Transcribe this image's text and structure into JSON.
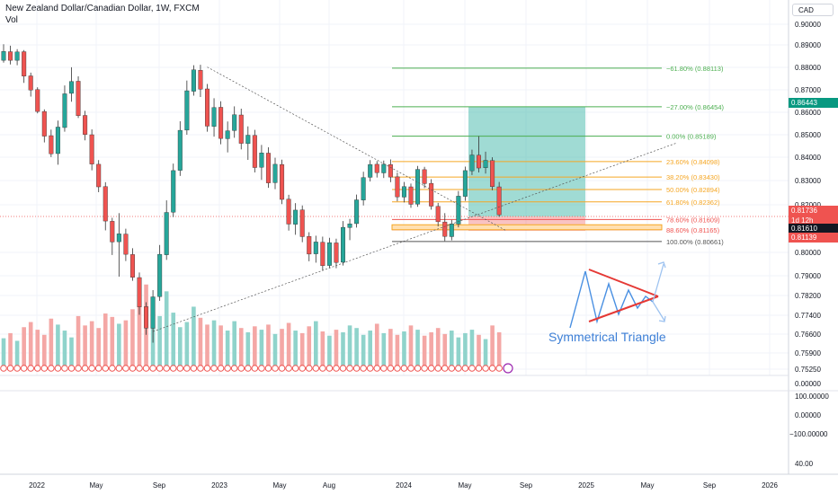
{
  "header": {
    "title": "New Zealand Dollar/Canadian Dollar, 1W, FXCM",
    "indicator": "Vol"
  },
  "currency_label": "CAD",
  "colors": {
    "up": "#26a69a",
    "down": "#ef5350",
    "vol_up": "#8fd3cb",
    "vol_down": "#f4a7a5",
    "fib_green": "#4caf50",
    "fib_orange": "#f5a623",
    "fib_red": "#ef5350",
    "fib_gray": "#555555",
    "target_zone": "#52bdb1",
    "last_price": "#ef5350"
  },
  "price_badges": [
    {
      "value": "0.86443",
      "color": "#089981"
    },
    {
      "value": "0.81736",
      "color": "#ef5350"
    },
    {
      "value": "1d 12h",
      "color": "#ef5350"
    },
    {
      "value": "0.81610",
      "color": "#131722"
    },
    {
      "value": "0.81139",
      "color": "#ef5350"
    }
  ],
  "annotation": {
    "label": "Symmetrical Triangle",
    "icon": "symmetrical-triangle-icon"
  },
  "chart_data": {
    "type": "candlestick",
    "title": "New Zealand Dollar/Canadian Dollar, 1W, FXCM",
    "x_ticks": [
      "2022",
      "May",
      "Sep",
      "2023",
      "May",
      "Aug",
      "2024",
      "May",
      "Sep",
      "2025",
      "May",
      "Sep",
      "2026"
    ],
    "price_ticks": [
      "0.90000",
      "0.89000",
      "0.88000",
      "0.87000",
      "0.86000",
      "0.85000",
      "0.84000",
      "0.83000",
      "0.82000",
      "0.80000",
      "0.79000",
      "0.78200",
      "0.77400",
      "0.76600",
      "0.75900",
      "0.75250"
    ],
    "indicator_ticks": [
      "0.00000",
      "100.00000",
      "0.00000",
      "−100.00000",
      "40.00"
    ],
    "ylim": [
      0.7525,
      0.9
    ],
    "last_price": 0.81736,
    "fib_levels": [
      {
        "label": "−61.80% (0.88113)",
        "price": 0.88113,
        "color": "#4caf50"
      },
      {
        "label": "−27.00% (0.86454)",
        "price": 0.86454,
        "color": "#4caf50"
      },
      {
        "label": "0.00% (0.85189)",
        "price": 0.85189,
        "color": "#4caf50"
      },
      {
        "label": "23.60% (0.84098)",
        "price": 0.84098,
        "color": "#f5a623"
      },
      {
        "label": "38.20% (0.83430)",
        "price": 0.8343,
        "color": "#f5a623"
      },
      {
        "label": "50.00% (0.82894)",
        "price": 0.82894,
        "color": "#f5a623"
      },
      {
        "label": "61.80% (0.82362)",
        "price": 0.82362,
        "color": "#f5a623"
      },
      {
        "label": "78.60% (0.81609)",
        "price": 0.81609,
        "color": "#ef5350"
      },
      {
        "label": "88.60% (0.81165)",
        "price": 0.81165,
        "color": "#ef5350"
      },
      {
        "label": "100.00% (0.80661)",
        "price": 0.80661,
        "color": "#555555"
      }
    ],
    "trendlines": [
      {
        "name": "resistance",
        "from": [
          30,
          0.8816
        ],
        "to": [
          74,
          0.8113
        ]
      },
      {
        "name": "support",
        "from": [
          22,
          0.7679
        ],
        "to": [
          99,
          0.8488
        ]
      }
    ],
    "target_zone": {
      "from_week": 67,
      "to_week": 84,
      "low": 0.81736,
      "high": 0.86454
    },
    "candles": [
      {
        "o": 0.8845,
        "h": 0.8914,
        "l": 0.8835,
        "c": 0.8883
      },
      {
        "o": 0.8882,
        "h": 0.8908,
        "l": 0.8827,
        "c": 0.8845
      },
      {
        "o": 0.8845,
        "h": 0.8893,
        "l": 0.8824,
        "c": 0.8881
      },
      {
        "o": 0.8882,
        "h": 0.8889,
        "l": 0.8748,
        "c": 0.8777
      },
      {
        "o": 0.8778,
        "h": 0.8792,
        "l": 0.8689,
        "c": 0.8717
      },
      {
        "o": 0.8719,
        "h": 0.8729,
        "l": 0.8617,
        "c": 0.8625
      },
      {
        "o": 0.8625,
        "h": 0.8634,
        "l": 0.8492,
        "c": 0.8519
      },
      {
        "o": 0.8521,
        "h": 0.8547,
        "l": 0.8429,
        "c": 0.8443
      },
      {
        "o": 0.8444,
        "h": 0.8586,
        "l": 0.8396,
        "c": 0.8558
      },
      {
        "o": 0.8556,
        "h": 0.8737,
        "l": 0.8538,
        "c": 0.8701
      },
      {
        "o": 0.8703,
        "h": 0.8815,
        "l": 0.8667,
        "c": 0.8754
      },
      {
        "o": 0.8755,
        "h": 0.8776,
        "l": 0.8597,
        "c": 0.8607
      },
      {
        "o": 0.8608,
        "h": 0.8628,
        "l": 0.8501,
        "c": 0.8526
      },
      {
        "o": 0.8525,
        "h": 0.8548,
        "l": 0.8372,
        "c": 0.8399
      },
      {
        "o": 0.8398,
        "h": 0.8416,
        "l": 0.8278,
        "c": 0.8301
      },
      {
        "o": 0.8302,
        "h": 0.8321,
        "l": 0.8114,
        "c": 0.8154
      },
      {
        "o": 0.8153,
        "h": 0.8168,
        "l": 0.8008,
        "c": 0.8064
      },
      {
        "o": 0.8065,
        "h": 0.8188,
        "l": 0.7915,
        "c": 0.8099
      },
      {
        "o": 0.8098,
        "h": 0.8121,
        "l": 0.7982,
        "c": 0.8011
      },
      {
        "o": 0.801,
        "h": 0.8037,
        "l": 0.7897,
        "c": 0.7912
      },
      {
        "o": 0.7911,
        "h": 0.7933,
        "l": 0.7751,
        "c": 0.7785
      },
      {
        "o": 0.7786,
        "h": 0.7805,
        "l": 0.7665,
        "c": 0.7694
      },
      {
        "o": 0.7693,
        "h": 0.7857,
        "l": 0.7631,
        "c": 0.7828
      },
      {
        "o": 0.7829,
        "h": 0.8051,
        "l": 0.7811,
        "c": 0.8011
      },
      {
        "o": 0.8009,
        "h": 0.8243,
        "l": 0.7987,
        "c": 0.8191
      },
      {
        "o": 0.8192,
        "h": 0.8401,
        "l": 0.8171,
        "c": 0.8371
      },
      {
        "o": 0.8372,
        "h": 0.8583,
        "l": 0.8348,
        "c": 0.8544
      },
      {
        "o": 0.8545,
        "h": 0.8758,
        "l": 0.8525,
        "c": 0.8714
      },
      {
        "o": 0.8712,
        "h": 0.8824,
        "l": 0.8693,
        "c": 0.8804
      },
      {
        "o": 0.8802,
        "h": 0.8826,
        "l": 0.8687,
        "c": 0.8721
      },
      {
        "o": 0.8722,
        "h": 0.8743,
        "l": 0.8538,
        "c": 0.8562
      },
      {
        "o": 0.8561,
        "h": 0.8682,
        "l": 0.8517,
        "c": 0.8642
      },
      {
        "o": 0.8643,
        "h": 0.8669,
        "l": 0.8484,
        "c": 0.8509
      },
      {
        "o": 0.8508,
        "h": 0.8582,
        "l": 0.8449,
        "c": 0.8542
      },
      {
        "o": 0.8543,
        "h": 0.8647,
        "l": 0.8512,
        "c": 0.8611
      },
      {
        "o": 0.861,
        "h": 0.8637,
        "l": 0.8462,
        "c": 0.8488
      },
      {
        "o": 0.8487,
        "h": 0.8561,
        "l": 0.8417,
        "c": 0.8523
      },
      {
        "o": 0.8522,
        "h": 0.8546,
        "l": 0.8363,
        "c": 0.8384
      },
      {
        "o": 0.8385,
        "h": 0.8481,
        "l": 0.8331,
        "c": 0.8447
      },
      {
        "o": 0.8446,
        "h": 0.8471,
        "l": 0.8297,
        "c": 0.8318
      },
      {
        "o": 0.8319,
        "h": 0.8426,
        "l": 0.8291,
        "c": 0.8398
      },
      {
        "o": 0.8397,
        "h": 0.8418,
        "l": 0.8227,
        "c": 0.8247
      },
      {
        "o": 0.8248,
        "h": 0.8267,
        "l": 0.8113,
        "c": 0.8141
      },
      {
        "o": 0.814,
        "h": 0.8231,
        "l": 0.8095,
        "c": 0.8201
      },
      {
        "o": 0.8202,
        "h": 0.8221,
        "l": 0.8063,
        "c": 0.8087
      },
      {
        "o": 0.8088,
        "h": 0.8106,
        "l": 0.7981,
        "c": 0.8012
      },
      {
        "o": 0.8013,
        "h": 0.8091,
        "l": 0.7975,
        "c": 0.8064
      },
      {
        "o": 0.8063,
        "h": 0.8087,
        "l": 0.7941,
        "c": 0.7962
      },
      {
        "o": 0.7963,
        "h": 0.8082,
        "l": 0.7951,
        "c": 0.8061
      },
      {
        "o": 0.806,
        "h": 0.8078,
        "l": 0.7951,
        "c": 0.7976
      },
      {
        "o": 0.7977,
        "h": 0.8154,
        "l": 0.7963,
        "c": 0.8127
      },
      {
        "o": 0.8126,
        "h": 0.8163,
        "l": 0.8072,
        "c": 0.8142
      },
      {
        "o": 0.8143,
        "h": 0.8268,
        "l": 0.8126,
        "c": 0.8245
      },
      {
        "o": 0.8244,
        "h": 0.8366,
        "l": 0.8221,
        "c": 0.8341
      },
      {
        "o": 0.8342,
        "h": 0.8416,
        "l": 0.8324,
        "c": 0.8397
      },
      {
        "o": 0.8398,
        "h": 0.8412,
        "l": 0.8341,
        "c": 0.8362
      },
      {
        "o": 0.8361,
        "h": 0.8414,
        "l": 0.8339,
        "c": 0.8398
      },
      {
        "o": 0.8397,
        "h": 0.8419,
        "l": 0.8321,
        "c": 0.8343
      },
      {
        "o": 0.8344,
        "h": 0.8362,
        "l": 0.8239,
        "c": 0.8258
      },
      {
        "o": 0.8257,
        "h": 0.8322,
        "l": 0.8234,
        "c": 0.8302
      },
      {
        "o": 0.8301,
        "h": 0.8315,
        "l": 0.8211,
        "c": 0.8226
      },
      {
        "o": 0.8227,
        "h": 0.8391,
        "l": 0.8215,
        "c": 0.8376
      },
      {
        "o": 0.8375,
        "h": 0.8387,
        "l": 0.8296,
        "c": 0.8315
      },
      {
        "o": 0.8316,
        "h": 0.8334,
        "l": 0.8203,
        "c": 0.8218
      },
      {
        "o": 0.8217,
        "h": 0.8232,
        "l": 0.8131,
        "c": 0.8151
      },
      {
        "o": 0.815,
        "h": 0.8188,
        "l": 0.8068,
        "c": 0.8088
      },
      {
        "o": 0.8087,
        "h": 0.8159,
        "l": 0.8071,
        "c": 0.8142
      },
      {
        "o": 0.8141,
        "h": 0.8283,
        "l": 0.8127,
        "c": 0.8261
      },
      {
        "o": 0.826,
        "h": 0.8388,
        "l": 0.8241,
        "c": 0.8371
      },
      {
        "o": 0.837,
        "h": 0.8461,
        "l": 0.8352,
        "c": 0.8438
      },
      {
        "o": 0.8437,
        "h": 0.8519,
        "l": 0.8363,
        "c": 0.8382
      },
      {
        "o": 0.8383,
        "h": 0.8452,
        "l": 0.8358,
        "c": 0.8415
      },
      {
        "o": 0.8414,
        "h": 0.8428,
        "l": 0.8286,
        "c": 0.8302
      },
      {
        "o": 0.8301,
        "h": 0.8322,
        "l": 0.8172,
        "c": 0.8181
      }
    ],
    "volumes": [
      0.32,
      0.38,
      0.29,
      0.45,
      0.51,
      0.42,
      0.36,
      0.55,
      0.48,
      0.41,
      0.33,
      0.58,
      0.47,
      0.52,
      0.44,
      0.61,
      0.57,
      0.49,
      0.53,
      0.66,
      0.72,
      0.95,
      0.63,
      0.58,
      0.87,
      0.62,
      0.45,
      0.51,
      0.69,
      0.56,
      0.48,
      0.53,
      0.47,
      0.41,
      0.52,
      0.44,
      0.39,
      0.46,
      0.42,
      0.48,
      0.37,
      0.43,
      0.5,
      0.41,
      0.38,
      0.46,
      0.52,
      0.4,
      0.35,
      0.42,
      0.39,
      0.47,
      0.44,
      0.36,
      0.41,
      0.49,
      0.38,
      0.43,
      0.36,
      0.4,
      0.47,
      0.42,
      0.35,
      0.39,
      0.44,
      0.37,
      0.41,
      0.33,
      0.38,
      0.42,
      0.36,
      0.31,
      0.47,
      0.39
    ]
  }
}
